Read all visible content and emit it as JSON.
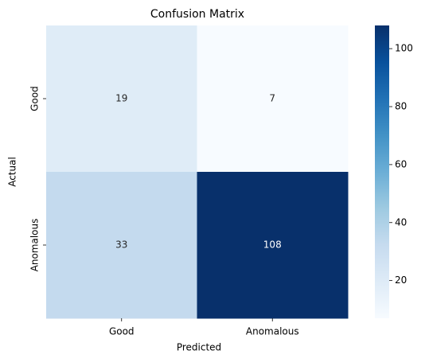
{
  "chart_data": {
    "type": "heatmap",
    "title": "Confusion Matrix",
    "xlabel": "Predicted",
    "ylabel": "Actual",
    "x_categories": [
      "Good",
      "Anomalous"
    ],
    "y_categories": [
      "Good",
      "Anomalous"
    ],
    "values": [
      [
        19,
        7
      ],
      [
        33,
        108
      ]
    ],
    "colormap": "Blues",
    "clim": [
      7,
      108
    ],
    "cticks": [
      20,
      40,
      60,
      80,
      100
    ]
  }
}
